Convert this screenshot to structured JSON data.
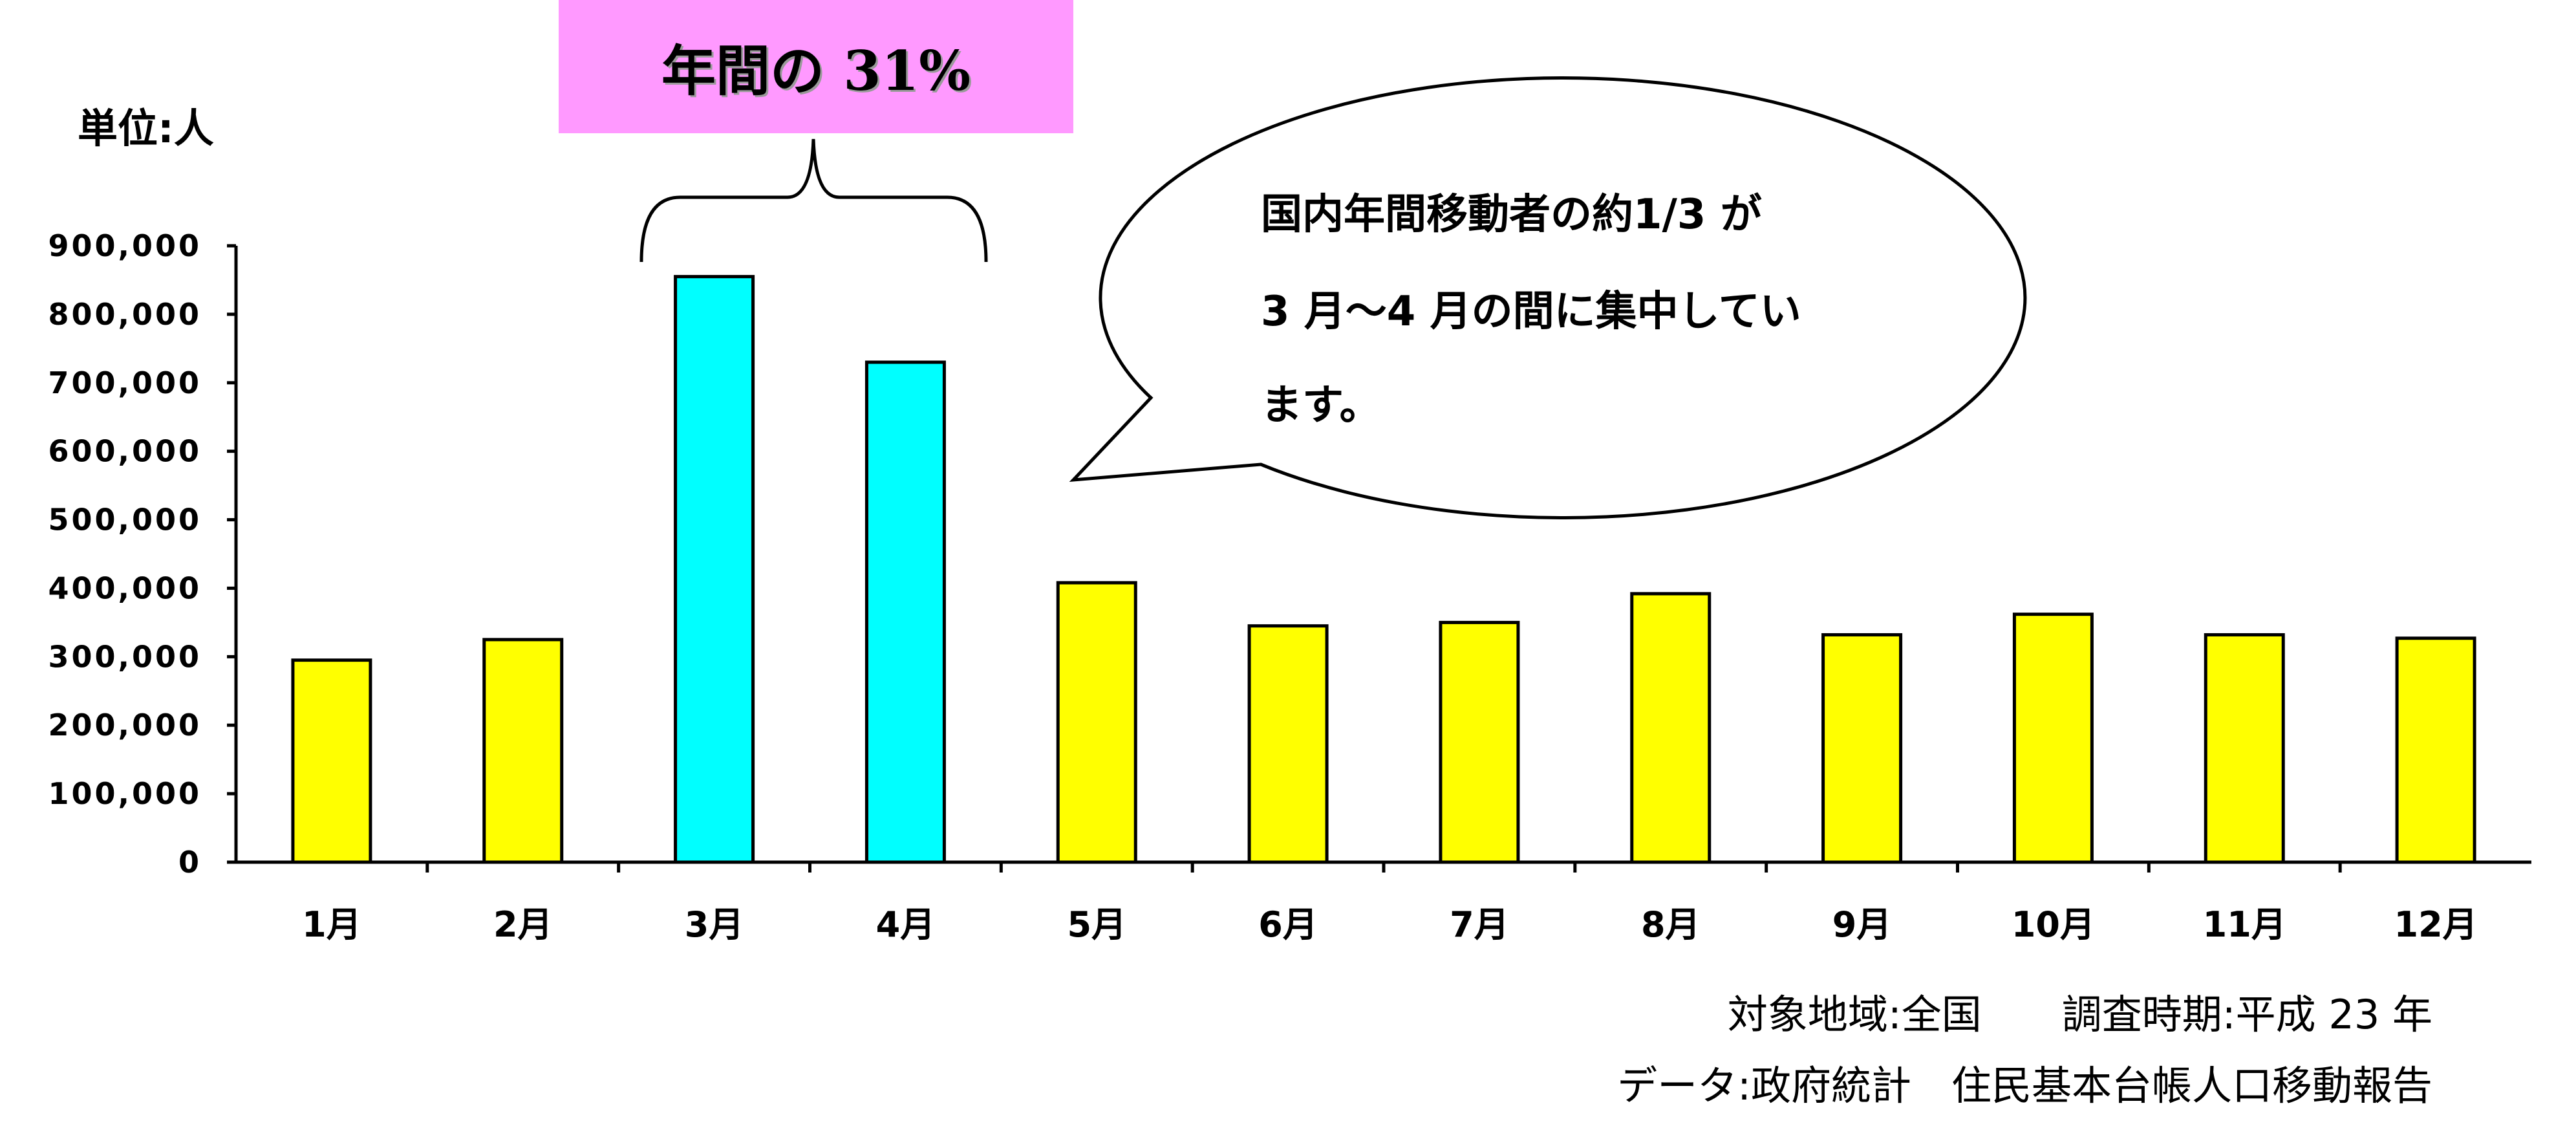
{
  "unit_label": "単位:人",
  "highlight_box": {
    "text": "年間の 31%",
    "color": "#ff99ff"
  },
  "callout": {
    "lines": [
      "国内年間移動者の約1/3 が",
      "3 月～4 月の間に集中してい",
      "ます。"
    ]
  },
  "source": {
    "line1": "対象地域:全国　　調査時期:平成 23 年",
    "line2": "データ:政府統計　住民基本台帳人口移動報告"
  },
  "colors": {
    "normal_bar": "#ffff00",
    "highlight_bar": "#00ffff",
    "bar_outline": "#000000"
  },
  "chart_data": {
    "type": "bar",
    "categories": [
      "1月",
      "2月",
      "3月",
      "4月",
      "5月",
      "6月",
      "7月",
      "8月",
      "9月",
      "10月",
      "11月",
      "12月"
    ],
    "values": [
      295000,
      325000,
      855000,
      730000,
      408000,
      345000,
      350000,
      392000,
      332000,
      362000,
      332000,
      327000
    ],
    "highlighted": [
      "3月",
      "4月"
    ],
    "ylim": [
      0,
      900000
    ],
    "yticks": [
      "0",
      "100,000",
      "200,000",
      "300,000",
      "400,000",
      "500,000",
      "600,000",
      "700,000",
      "800,000",
      "900,000"
    ],
    "ytick_values": [
      0,
      100000,
      200000,
      300000,
      400000,
      500000,
      600000,
      700000,
      800000,
      900000
    ],
    "title": "",
    "xlabel": "",
    "ylabel": "単位:人",
    "grid": false,
    "legend": "none"
  }
}
